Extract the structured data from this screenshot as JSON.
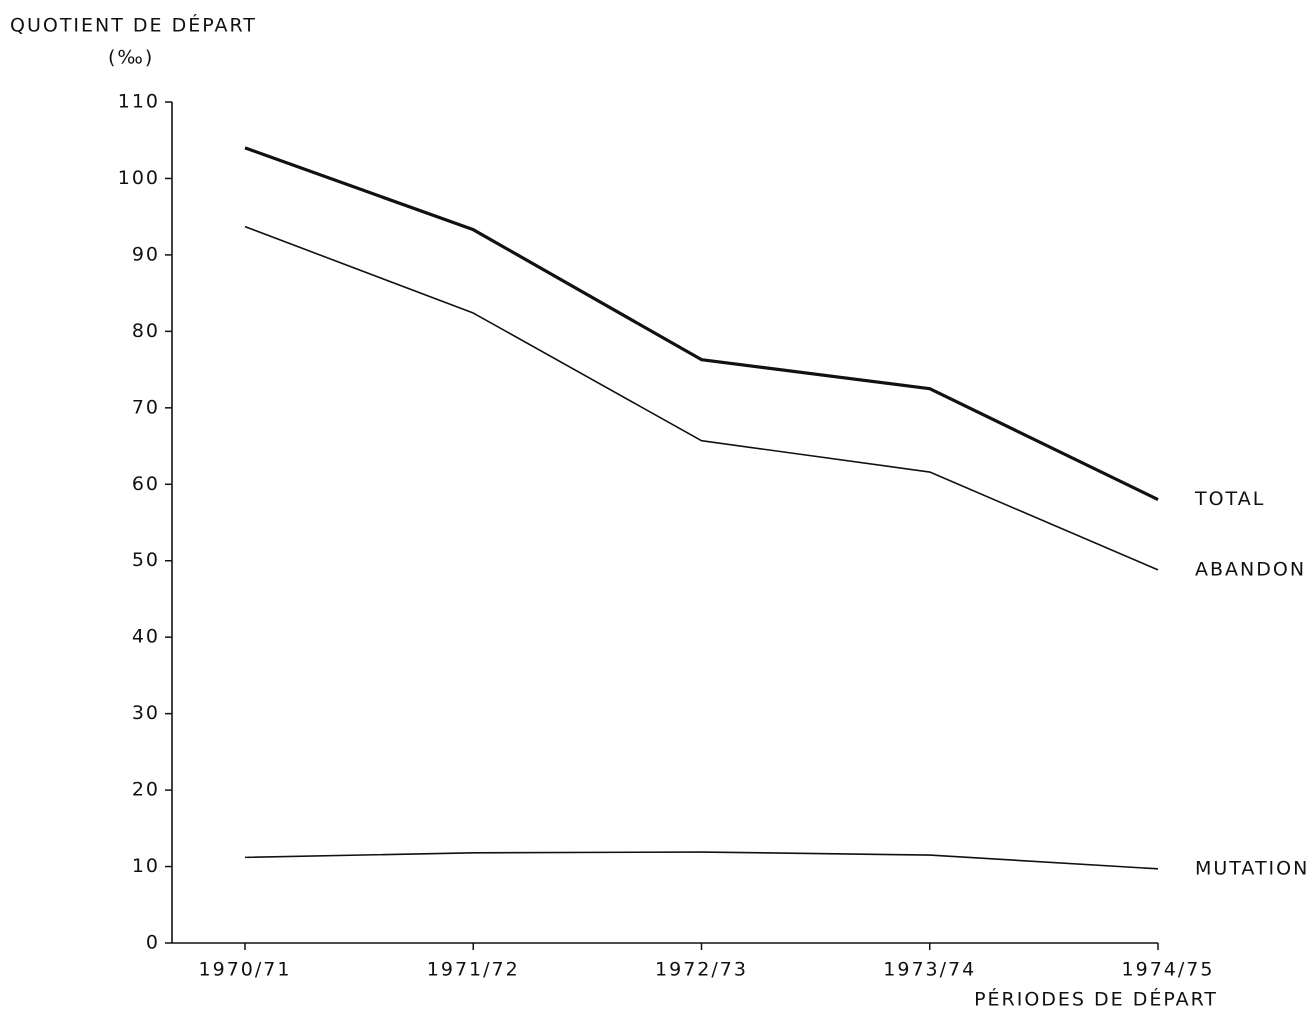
{
  "chart_data": {
    "type": "line",
    "y_label": "QUOTIENT DE DÉPART",
    "y_unit": "(‰)",
    "x_label": "PÉRIODES DE DÉPART",
    "categories": [
      "1970/71",
      "1971/72",
      "1972/73",
      "1973/74",
      "1974/75"
    ],
    "series": [
      {
        "name": "TOTAL",
        "color": "#111111",
        "line_width": 3.2,
        "values": [
          104,
          93.3,
          76.3,
          72.5,
          58
        ]
      },
      {
        "name": "ABANDON",
        "color": "#111111",
        "line_width": 1.6,
        "values": [
          93.7,
          82.4,
          65.7,
          61.6,
          48.8
        ]
      },
      {
        "name": "MUTATION",
        "color": "#111111",
        "line_width": 1.6,
        "values": [
          11.2,
          11.8,
          11.9,
          11.5,
          9.7
        ]
      }
    ],
    "ylim": [
      0,
      110
    ],
    "yticks": [
      0,
      10,
      20,
      30,
      40,
      50,
      60,
      70,
      80,
      90,
      100,
      110
    ],
    "grid": false
  }
}
